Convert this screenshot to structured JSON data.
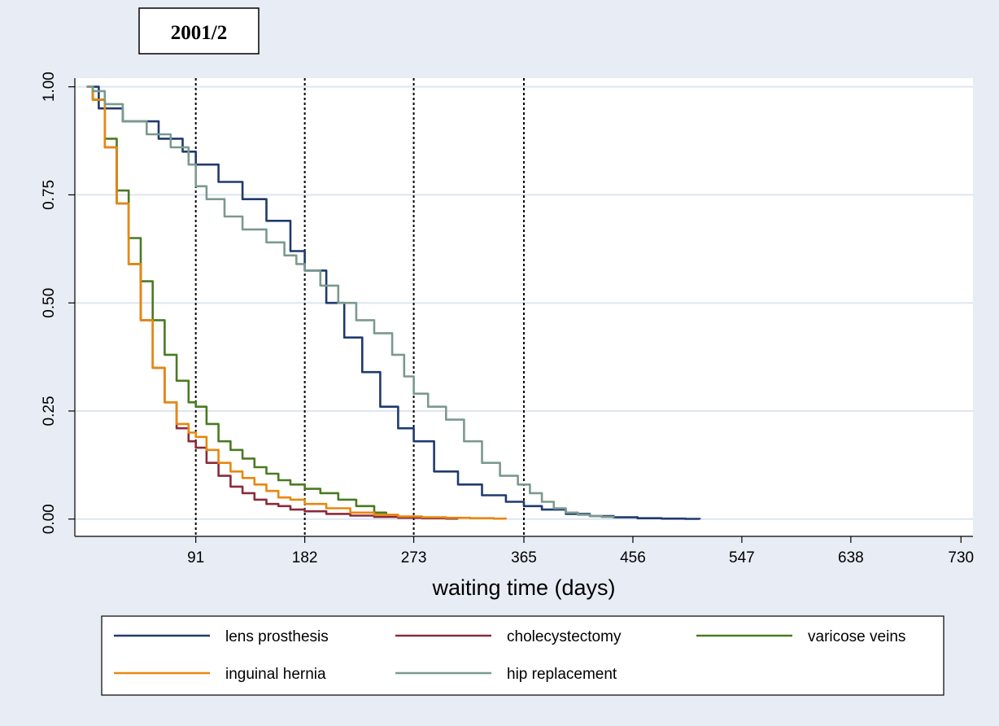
{
  "chart_data": {
    "type": "line",
    "title": "2001/2",
    "xlabel": "waiting time (days)",
    "ylabel": "",
    "xlim": [
      -10,
      740
    ],
    "ylim": [
      -0.04,
      1.02
    ],
    "x_ticks": [
      91,
      182,
      273,
      365,
      456,
      547,
      638,
      730
    ],
    "x_tick_labels": [
      "91",
      "182",
      "273",
      "365",
      "456",
      "547",
      "638",
      "730"
    ],
    "y_ticks": [
      0,
      0.25,
      0.5,
      0.75,
      1
    ],
    "y_tick_labels": [
      "0.00",
      "0.25",
      "0.50",
      "0.75",
      "1.00"
    ],
    "reference_lines_x": [
      91,
      182,
      273,
      365
    ],
    "grid": "horizontal",
    "background_color": "#e8ecf4",
    "plot_background": "#ffffff",
    "gridline_color": "#dfe5f0",
    "legend_position": "bottom",
    "series": [
      {
        "name": "lens prosthesis",
        "color": "#1f3a6e",
        "x": [
          0,
          10,
          30,
          60,
          80,
          91,
          110,
          130,
          150,
          170,
          182,
          200,
          215,
          230,
          245,
          260,
          273,
          290,
          310,
          330,
          350,
          365,
          380,
          400,
          420,
          440,
          460,
          480,
          500,
          512
        ],
        "y": [
          1.0,
          0.95,
          0.92,
          0.88,
          0.85,
          0.82,
          0.78,
          0.74,
          0.69,
          0.62,
          0.575,
          0.5,
          0.42,
          0.34,
          0.26,
          0.21,
          0.18,
          0.11,
          0.08,
          0.055,
          0.04,
          0.03,
          0.022,
          0.012,
          0.007,
          0.004,
          0.002,
          0.001,
          0.0005,
          0.0
        ]
      },
      {
        "name": "cholecystectomy",
        "color": "#8b2a3a",
        "x": [
          0,
          5,
          15,
          25,
          35,
          45,
          55,
          65,
          75,
          85,
          91,
          100,
          110,
          120,
          130,
          140,
          150,
          160,
          170,
          182,
          200,
          220,
          240,
          260,
          280,
          300,
          310
        ],
        "y": [
          1.0,
          0.97,
          0.86,
          0.73,
          0.59,
          0.46,
          0.35,
          0.27,
          0.21,
          0.18,
          0.165,
          0.13,
          0.1,
          0.075,
          0.06,
          0.045,
          0.035,
          0.03,
          0.022,
          0.018,
          0.012,
          0.008,
          0.005,
          0.003,
          0.002,
          0.001,
          0.0
        ]
      },
      {
        "name": "varicose veins",
        "color": "#4a7a22",
        "x": [
          0,
          5,
          15,
          25,
          35,
          45,
          55,
          65,
          75,
          85,
          91,
          100,
          110,
          120,
          130,
          140,
          150,
          160,
          170,
          182,
          195,
          210,
          225,
          240,
          250
        ],
        "y": [
          1.0,
          0.97,
          0.88,
          0.76,
          0.65,
          0.55,
          0.46,
          0.38,
          0.32,
          0.27,
          0.26,
          0.22,
          0.18,
          0.16,
          0.14,
          0.12,
          0.105,
          0.09,
          0.08,
          0.07,
          0.06,
          0.045,
          0.03,
          0.015,
          0.008
        ]
      },
      {
        "name": "inguinal hernia",
        "color": "#e8870e",
        "x": [
          0,
          5,
          15,
          25,
          35,
          45,
          55,
          65,
          75,
          85,
          91,
          100,
          110,
          120,
          130,
          140,
          150,
          160,
          170,
          182,
          200,
          220,
          240,
          260,
          280,
          300,
          320,
          340,
          350
        ],
        "y": [
          1.0,
          0.97,
          0.86,
          0.73,
          0.59,
          0.46,
          0.35,
          0.27,
          0.22,
          0.2,
          0.19,
          0.16,
          0.13,
          0.11,
          0.095,
          0.08,
          0.065,
          0.05,
          0.045,
          0.035,
          0.025,
          0.015,
          0.01,
          0.006,
          0.004,
          0.003,
          0.002,
          0.001,
          0.0
        ]
      },
      {
        "name": "hip replacement",
        "color": "#7a9a8e",
        "x": [
          0,
          5,
          15,
          30,
          50,
          70,
          85,
          91,
          100,
          115,
          130,
          150,
          165,
          175,
          182,
          195,
          210,
          225,
          240,
          255,
          265,
          273,
          285,
          300,
          315,
          330,
          345,
          360,
          370,
          380,
          390,
          400,
          410,
          420,
          430,
          440
        ],
        "y": [
          1.0,
          0.99,
          0.96,
          0.92,
          0.89,
          0.86,
          0.82,
          0.77,
          0.74,
          0.7,
          0.67,
          0.64,
          0.61,
          0.59,
          0.575,
          0.54,
          0.5,
          0.46,
          0.43,
          0.38,
          0.33,
          0.29,
          0.26,
          0.23,
          0.18,
          0.13,
          0.1,
          0.08,
          0.06,
          0.04,
          0.025,
          0.015,
          0.01,
          0.007,
          0.005,
          0.003
        ]
      }
    ]
  }
}
